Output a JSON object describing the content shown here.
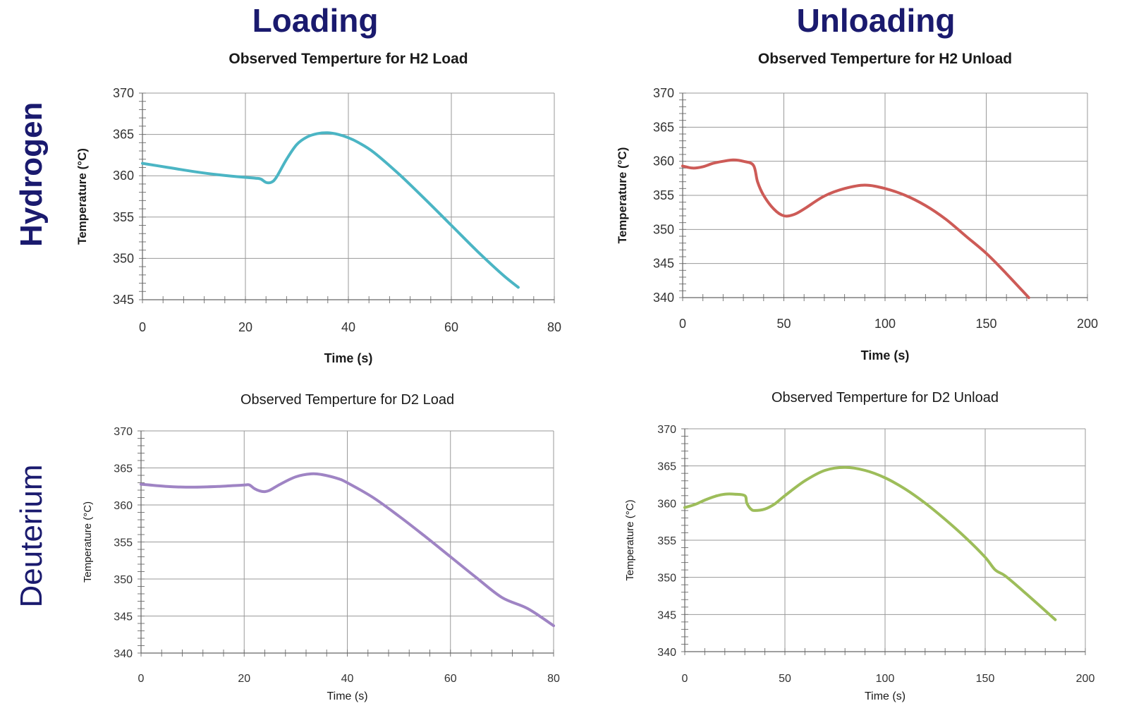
{
  "headings": {
    "loading": "Loading",
    "unloading": "Unloading",
    "hydrogen": "Hydrogen",
    "deuterium": "Deuterium"
  },
  "chart_data": [
    {
      "id": "h2-load",
      "type": "line",
      "title": "Observed Temperture for H2 Load",
      "xlabel": "Time (s)",
      "ylabel": "Temperature (°C)",
      "xlim": [
        0,
        80
      ],
      "ylim": [
        345,
        370
      ],
      "xticks": [
        0,
        20,
        40,
        60,
        80
      ],
      "yticks": [
        345,
        350,
        355,
        360,
        365,
        370
      ],
      "grid": true,
      "color": "#4bb5c4",
      "series": [
        {
          "x": [
            0,
            5,
            10,
            15,
            20,
            22,
            23,
            24,
            25,
            26,
            28,
            30,
            32,
            34,
            36,
            38,
            40,
            42,
            45,
            50,
            55,
            60,
            65,
            70,
            73
          ],
          "y": [
            361.5,
            361.0,
            360.5,
            360.1,
            359.8,
            359.7,
            359.6,
            359.2,
            359.2,
            359.8,
            362.0,
            363.8,
            364.7,
            365.1,
            365.2,
            365.0,
            364.6,
            364.0,
            362.8,
            360.1,
            357.1,
            354.0,
            350.9,
            348.0,
            346.5
          ]
        }
      ]
    },
    {
      "id": "h2-unload",
      "type": "line",
      "title": "Observed Temperture for H2 Unload",
      "xlabel": "Time (s)",
      "ylabel": "Temperature (°C)",
      "xlim": [
        0,
        200
      ],
      "ylim": [
        340,
        370
      ],
      "xticks": [
        0,
        50,
        100,
        150,
        200
      ],
      "yticks": [
        340,
        345,
        350,
        355,
        360,
        365,
        370
      ],
      "grid": true,
      "color": "#cd5b57",
      "series": [
        {
          "x": [
            0,
            5,
            10,
            15,
            20,
            25,
            30,
            35,
            37,
            40,
            45,
            50,
            55,
            60,
            70,
            80,
            90,
            100,
            110,
            120,
            130,
            140,
            150,
            160,
            171
          ],
          "y": [
            359.3,
            359.0,
            359.2,
            359.7,
            360.0,
            360.2,
            360.0,
            359.4,
            357.0,
            355.0,
            353.0,
            352.0,
            352.2,
            353.0,
            354.9,
            356.0,
            356.5,
            356.0,
            355.0,
            353.5,
            351.5,
            349.0,
            346.5,
            343.5,
            340.0
          ]
        }
      ]
    },
    {
      "id": "d2-load",
      "type": "line",
      "title": "Observed Temperture for D2 Load",
      "xlabel": "Time (s)",
      "ylabel": "Temperature (°C)",
      "xlim": [
        0,
        80
      ],
      "ylim": [
        340,
        370
      ],
      "xticks": [
        0,
        20,
        40,
        60,
        80
      ],
      "yticks": [
        340,
        345,
        350,
        355,
        360,
        365,
        370
      ],
      "grid": true,
      "color": "#9f84c4",
      "series": [
        {
          "x": [
            0,
            5,
            10,
            15,
            20,
            21,
            22,
            23,
            24,
            25,
            27,
            30,
            33,
            35,
            38,
            40,
            45,
            50,
            55,
            60,
            65,
            70,
            75,
            80
          ],
          "y": [
            362.8,
            362.5,
            362.4,
            362.5,
            362.7,
            362.7,
            362.2,
            361.9,
            361.8,
            362.0,
            362.8,
            363.8,
            364.2,
            364.1,
            363.6,
            363.0,
            361.0,
            358.5,
            355.8,
            353.0,
            350.2,
            347.5,
            346.0,
            343.7
          ]
        }
      ]
    },
    {
      "id": "d2-unload",
      "type": "line",
      "title": "Observed Temperture for D2 Unload",
      "xlabel": "Time (s)",
      "ylabel": "Temperature (°C)",
      "xlim": [
        0,
        200
      ],
      "ylim": [
        340,
        370
      ],
      "xticks": [
        0,
        50,
        100,
        150,
        200
      ],
      "yticks": [
        340,
        345,
        350,
        355,
        360,
        365,
        370
      ],
      "grid": true,
      "color": "#9dbd5a",
      "series": [
        {
          "x": [
            0,
            5,
            10,
            15,
            20,
            25,
            30,
            31,
            33,
            35,
            40,
            45,
            50,
            60,
            70,
            80,
            90,
            100,
            110,
            120,
            130,
            140,
            150,
            155,
            160,
            170,
            185
          ],
          "y": [
            359.4,
            359.8,
            360.4,
            360.9,
            361.2,
            361.2,
            361.0,
            360.0,
            359.2,
            359.0,
            359.2,
            359.9,
            361.0,
            363.0,
            364.4,
            364.8,
            364.4,
            363.4,
            361.9,
            360.0,
            357.8,
            355.4,
            352.7,
            351.0,
            350.2,
            347.9,
            344.3
          ]
        }
      ]
    }
  ]
}
